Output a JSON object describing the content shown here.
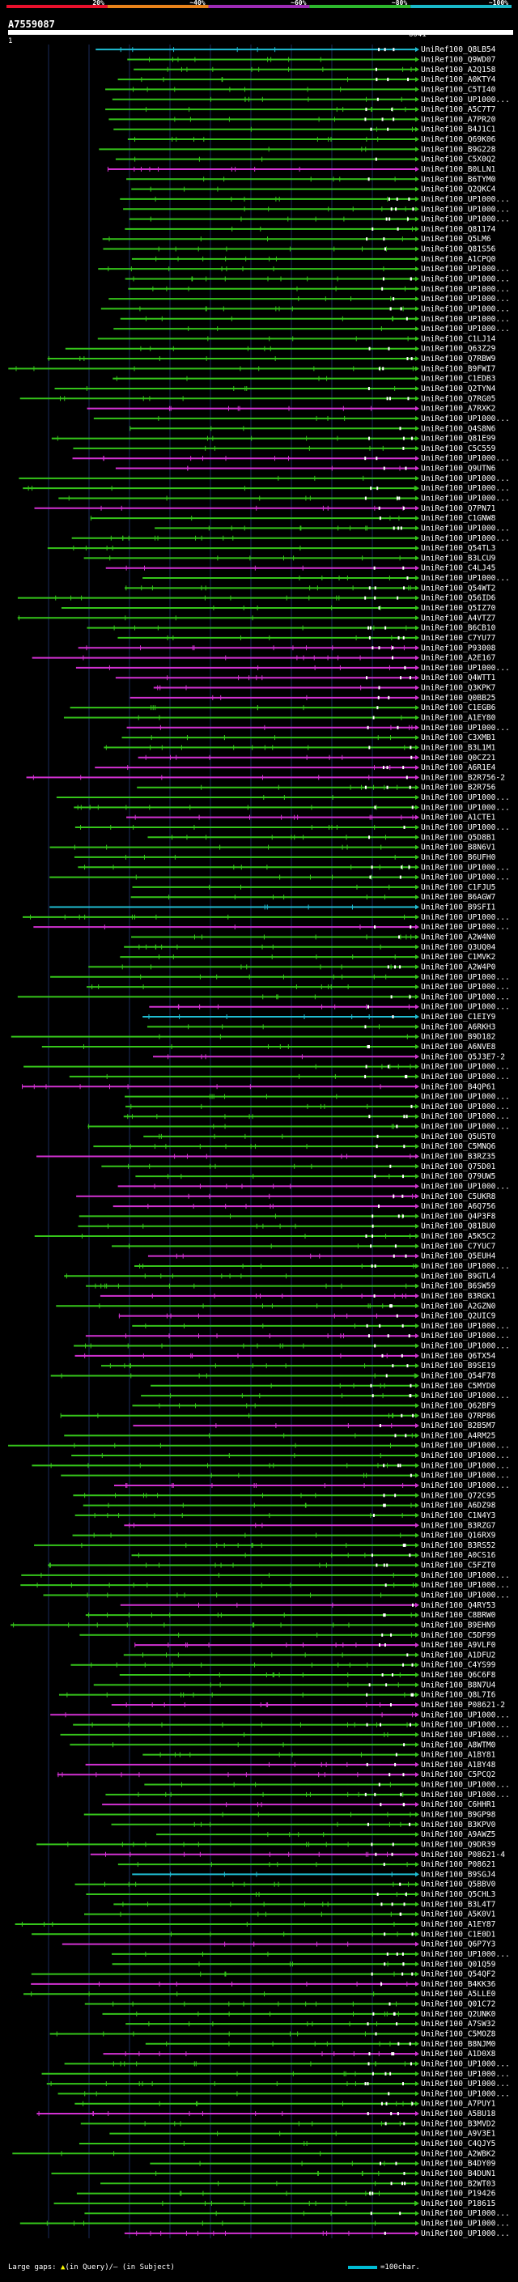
{
  "header": {
    "scale_labels": [
      "20%",
      "~40%",
      "~60%",
      "~80%",
      "~100%"
    ],
    "scale_colors": [
      "#e8102c",
      "#e8821a",
      "#9d2bb5",
      "#2db82d",
      "#19b8c8"
    ],
    "query_id": "A7559087",
    "start_pos": "1",
    "end_pos": "6041"
  },
  "colors": {
    "background": "#000000",
    "grid": "#1a2a5a",
    "green": "#35c51a",
    "magenta": "#d231d2",
    "cyan": "#1fbcd1",
    "query_bar": "#ffffff",
    "text": "#ffffff"
  },
  "chart_data": {
    "type": "alignment-overview",
    "title": "",
    "query_length": 6041,
    "hits": [
      {
        "id": "UniRef100_Q8LB54",
        "color": "cyan"
      },
      {
        "id": "UniRef100_Q9WD07",
        "color": "green"
      },
      {
        "id": "UniRef100_A2Q158",
        "color": "green"
      },
      {
        "id": "UniRef100_A0KTY4",
        "color": "green"
      },
      {
        "id": "UniRef100_C5TI40",
        "color": "green"
      },
      {
        "id": "UniRef100_UP1000...",
        "color": "green"
      },
      {
        "id": "UniRef100_A5C7T7",
        "color": "green"
      },
      {
        "id": "UniRef100_A7PR20",
        "color": "green"
      },
      {
        "id": "UniRef100_B4J1C1",
        "color": "green"
      },
      {
        "id": "UniRef100_Q69K06",
        "color": "green"
      },
      {
        "id": "UniRef100_B9G228",
        "color": "green"
      },
      {
        "id": "UniRef100_C5X0Q2",
        "color": "green"
      },
      {
        "id": "UniRef100_B0LLN1",
        "color": "magenta"
      },
      {
        "id": "UniRef100_B6TYM0",
        "color": "green"
      },
      {
        "id": "UniRef100_Q2QKC4",
        "color": "green"
      },
      {
        "id": "UniRef100_UP1000...",
        "color": "green"
      },
      {
        "id": "UniRef100_UP1000...",
        "color": "green"
      },
      {
        "id": "UniRef100_UP1000...",
        "color": "green"
      },
      {
        "id": "UniRef100_Q81174",
        "color": "green"
      },
      {
        "id": "UniRef100_Q5LM6",
        "color": "green"
      },
      {
        "id": "UniRef100_Q81S56",
        "color": "green"
      },
      {
        "id": "UniRef100_A1CPQ0",
        "color": "green"
      },
      {
        "id": "UniRef100_UP1000...",
        "color": "green"
      },
      {
        "id": "UniRef100_UP1000...",
        "color": "green"
      },
      {
        "id": "UniRef100_UP1000...",
        "color": "green"
      },
      {
        "id": "UniRef100_UP1000...",
        "color": "green"
      },
      {
        "id": "UniRef100_UP1000...",
        "color": "green"
      },
      {
        "id": "UniRef100_UP1000...",
        "color": "green"
      },
      {
        "id": "UniRef100_UP1000...",
        "color": "green"
      },
      {
        "id": "UniRef100_C1LJ14",
        "color": "green"
      },
      {
        "id": "UniRef100_Q63Z29",
        "color": "green"
      },
      {
        "id": "UniRef100_Q7RBW9",
        "color": "green"
      },
      {
        "id": "UniRef100_B9FWI7",
        "color": "green"
      },
      {
        "id": "UniRef100_C1EDB3",
        "color": "green"
      },
      {
        "id": "UniRef100_Q2TYN4",
        "color": "green"
      },
      {
        "id": "UniRef100_Q7RG05",
        "color": "green"
      },
      {
        "id": "UniRef100_A7RXK2",
        "color": "magenta"
      },
      {
        "id": "UniRef100_UP1000...",
        "color": "green"
      },
      {
        "id": "UniRef100_Q4S8N6",
        "color": "green"
      },
      {
        "id": "UniRef100_Q81E99",
        "color": "green"
      },
      {
        "id": "UniRef100_C5C559",
        "color": "green"
      },
      {
        "id": "UniRef100_UP1000...",
        "color": "magenta"
      },
      {
        "id": "UniRef100_Q9UTN6",
        "color": "magenta"
      },
      {
        "id": "UniRef100_UP1000...",
        "color": "green"
      },
      {
        "id": "UniRef100_UP1000...",
        "color": "green"
      },
      {
        "id": "UniRef100_UP1000...",
        "color": "green"
      },
      {
        "id": "UniRef100_Q7PN71",
        "color": "magenta"
      },
      {
        "id": "UniRef100_C1GNW8",
        "color": "green"
      },
      {
        "id": "UniRef100_UP1000...",
        "color": "green"
      },
      {
        "id": "UniRef100_UP1000...",
        "color": "green"
      },
      {
        "id": "UniRef100_Q54TL3",
        "color": "green"
      },
      {
        "id": "UniRef100_B3LCU9",
        "color": "green"
      },
      {
        "id": "UniRef100_C4LJ45",
        "color": "magenta"
      },
      {
        "id": "UniRef100_UP1000...",
        "color": "green"
      },
      {
        "id": "UniRef100_Q54WT2",
        "color": "green"
      },
      {
        "id": "UniRef100_Q56ID6",
        "color": "green"
      },
      {
        "id": "UniRef100_Q5IZ70",
        "color": "green"
      },
      {
        "id": "UniRef100_A4VTZ7",
        "color": "green"
      },
      {
        "id": "UniRef100_B6CB10",
        "color": "green"
      },
      {
        "id": "UniRef100_C7YU77",
        "color": "green"
      },
      {
        "id": "UniRef100_P93008",
        "color": "magenta"
      },
      {
        "id": "UniRef100_A2E167",
        "color": "magenta"
      },
      {
        "id": "UniRef100_UP1000...",
        "color": "magenta"
      },
      {
        "id": "UniRef100_Q4WTT1",
        "color": "magenta"
      },
      {
        "id": "UniRef100_Q3KPK7",
        "color": "magenta"
      },
      {
        "id": "UniRef100_Q0BB25",
        "color": "magenta"
      },
      {
        "id": "UniRef100_C1EGB6",
        "color": "green"
      },
      {
        "id": "UniRef100_A1EY80",
        "color": "green"
      },
      {
        "id": "UniRef100_UP1000...",
        "color": "magenta"
      },
      {
        "id": "UniRef100_C3XMB1",
        "color": "green"
      },
      {
        "id": "UniRef100_B3L1M1",
        "color": "green"
      },
      {
        "id": "UniRef100_Q0CZ21",
        "color": "magenta"
      },
      {
        "id": "UniRef100_A6R1E4",
        "color": "magenta"
      },
      {
        "id": "UniRef100_B2R756-2",
        "color": "magenta"
      },
      {
        "id": "UniRef100_B2R756",
        "color": "green"
      },
      {
        "id": "UniRef100_UP1000...",
        "color": "green"
      },
      {
        "id": "UniRef100_UP1000...",
        "color": "green"
      },
      {
        "id": "UniRef100_A1CTE1",
        "color": "magenta"
      },
      {
        "id": "UniRef100_UP1000...",
        "color": "green"
      },
      {
        "id": "UniRef100_Q5D8B1",
        "color": "green"
      },
      {
        "id": "UniRef100_B8N6V1",
        "color": "green"
      },
      {
        "id": "UniRef100_B6UFH0",
        "color": "green"
      },
      {
        "id": "UniRef100_UP1000...",
        "color": "green"
      },
      {
        "id": "UniRef100_UP1000...",
        "color": "green"
      },
      {
        "id": "UniRef100_C1FJU5",
        "color": "green"
      },
      {
        "id": "UniRef100_B6AGW7",
        "color": "green"
      },
      {
        "id": "UniRef100_B9SFI1",
        "color": "cyan"
      },
      {
        "id": "UniRef100_UP1000...",
        "color": "green"
      },
      {
        "id": "UniRef100_UP1000...",
        "color": "magenta"
      },
      {
        "id": "UniRef100_A2W4N0",
        "color": "green"
      },
      {
        "id": "UniRef100_Q3UQ04",
        "color": "green"
      },
      {
        "id": "UniRef100_C1MVK2",
        "color": "green"
      },
      {
        "id": "UniRef100_A2W4P0",
        "color": "green"
      },
      {
        "id": "UniRef100_UP1000...",
        "color": "green"
      },
      {
        "id": "UniRef100_UP1000...",
        "color": "green"
      },
      {
        "id": "UniRef100_UP1000...",
        "color": "green"
      },
      {
        "id": "UniRef100_UP1000...",
        "color": "magenta"
      },
      {
        "id": "UniRef100_C1EIY9",
        "color": "cyan"
      },
      {
        "id": "UniRef100_A6RKH3",
        "color": "green"
      },
      {
        "id": "UniRef100_B9D182",
        "color": "green"
      },
      {
        "id": "UniRef100_A6NVE8",
        "color": "green"
      },
      {
        "id": "UniRef100_Q5J3E7-2",
        "color": "magenta"
      },
      {
        "id": "UniRef100_UP1000...",
        "color": "green"
      },
      {
        "id": "UniRef100_UP1000...",
        "color": "green"
      },
      {
        "id": "UniRef100_B4QP61",
        "color": "magenta"
      },
      {
        "id": "UniRef100_UP1000...",
        "color": "green"
      },
      {
        "id": "UniRef100_UP1000...",
        "color": "green"
      },
      {
        "id": "UniRef100_UP1000...",
        "color": "green"
      },
      {
        "id": "UniRef100_UP1000...",
        "color": "green"
      },
      {
        "id": "UniRef100_Q5U5T0",
        "color": "green"
      },
      {
        "id": "UniRef100_C5MNQ6",
        "color": "green"
      },
      {
        "id": "UniRef100_B3RZ35",
        "color": "magenta"
      },
      {
        "id": "UniRef100_Q75D01",
        "color": "green"
      },
      {
        "id": "UniRef100_Q79UW5",
        "color": "green"
      },
      {
        "id": "UniRef100_UP1000...",
        "color": "magenta"
      },
      {
        "id": "UniRef100_C5UKR8",
        "color": "magenta"
      },
      {
        "id": "UniRef100_A6Q756",
        "color": "magenta"
      },
      {
        "id": "UniRef100_Q4P3F8",
        "color": "green"
      },
      {
        "id": "UniRef100_Q81BU0",
        "color": "green"
      },
      {
        "id": "UniRef100_A5K5C2",
        "color": "green"
      },
      {
        "id": "UniRef100_C7YUC7",
        "color": "green"
      },
      {
        "id": "UniRef100_Q5EUH4",
        "color": "magenta"
      },
      {
        "id": "UniRef100_UP1000...",
        "color": "green"
      },
      {
        "id": "UniRef100_B9GTL4",
        "color": "green"
      },
      {
        "id": "UniRef100_B6SW59",
        "color": "green"
      },
      {
        "id": "UniRef100_B3RGK1",
        "color": "magenta"
      },
      {
        "id": "UniRef100_A2GZN0",
        "color": "green"
      },
      {
        "id": "UniRef100_Q2UIC9",
        "color": "magenta"
      },
      {
        "id": "UniRef100_UP1000...",
        "color": "green"
      },
      {
        "id": "UniRef100_UP1000...",
        "color": "magenta"
      },
      {
        "id": "UniRef100_UP1000...",
        "color": "green"
      },
      {
        "id": "UniRef100_Q6TX54",
        "color": "magenta"
      },
      {
        "id": "UniRef100_B9SE19",
        "color": "green"
      },
      {
        "id": "UniRef100_Q54F78",
        "color": "green"
      },
      {
        "id": "UniRef100_C5MYD0",
        "color": "green"
      },
      {
        "id": "UniRef100_UP1000...",
        "color": "green"
      },
      {
        "id": "UniRef100_Q62BF9",
        "color": "green"
      },
      {
        "id": "UniRef100_Q7RP86",
        "color": "green"
      },
      {
        "id": "UniRef100_B2B5M7",
        "color": "magenta"
      },
      {
        "id": "UniRef100_A4RM25",
        "color": "green"
      },
      {
        "id": "UniRef100_UP1000...",
        "color": "green"
      },
      {
        "id": "UniRef100_UP1000...",
        "color": "green"
      },
      {
        "id": "UniRef100_UP1000...",
        "color": "green"
      },
      {
        "id": "UniRef100_UP1000...",
        "color": "green"
      },
      {
        "id": "UniRef100_UP1000...",
        "color": "magenta"
      },
      {
        "id": "UniRef100_Q72C95",
        "color": "green"
      },
      {
        "id": "UniRef100_A6DZ98",
        "color": "green"
      },
      {
        "id": "UniRef100_C1N4Y3",
        "color": "green"
      },
      {
        "id": "UniRef100_B3RZG7",
        "color": "magenta"
      },
      {
        "id": "UniRef100_Q16RX9",
        "color": "green"
      },
      {
        "id": "UniRef100_B3RS52",
        "color": "green"
      },
      {
        "id": "UniRef100_A0CS16",
        "color": "green"
      },
      {
        "id": "UniRef100_C5FZT0",
        "color": "green"
      },
      {
        "id": "UniRef100_UP1000...",
        "color": "green"
      },
      {
        "id": "UniRef100_UP1000...",
        "color": "green"
      },
      {
        "id": "UniRef100_UP1000...",
        "color": "green"
      },
      {
        "id": "UniRef100_Q4RY53",
        "color": "magenta"
      },
      {
        "id": "UniRef100_C8BRW0",
        "color": "green"
      },
      {
        "id": "UniRef100_B9EHN9",
        "color": "green"
      },
      {
        "id": "UniRef100_C5DF99",
        "color": "green"
      },
      {
        "id": "UniRef100_A9VLF0",
        "color": "magenta"
      },
      {
        "id": "UniRef100_A1DFU2",
        "color": "green"
      },
      {
        "id": "UniRef100_C4YS99",
        "color": "green"
      },
      {
        "id": "UniRef100_Q6C6F8",
        "color": "green"
      },
      {
        "id": "UniRef100_B8N7U4",
        "color": "green"
      },
      {
        "id": "UniRef100_Q8L7I6",
        "color": "green"
      },
      {
        "id": "UniRef100_P08621-2",
        "color": "magenta"
      },
      {
        "id": "UniRef100_UP1000...",
        "color": "magenta"
      },
      {
        "id": "UniRef100_UP1000...",
        "color": "green"
      },
      {
        "id": "UniRef100_UP1000...",
        "color": "green"
      },
      {
        "id": "UniRef100_A8WTM0",
        "color": "green"
      },
      {
        "id": "UniRef100_A1BY81",
        "color": "green"
      },
      {
        "id": "UniRef100_A1BY48",
        "color": "magenta"
      },
      {
        "id": "UniRef100_C5PCQ2",
        "color": "magenta"
      },
      {
        "id": "UniRef100_UP1000...",
        "color": "green"
      },
      {
        "id": "UniRef100_UP1000...",
        "color": "green"
      },
      {
        "id": "UniRef100_C6HHR1",
        "color": "magenta"
      },
      {
        "id": "UniRef100_B9GP98",
        "color": "green"
      },
      {
        "id": "UniRef100_B3KPV0",
        "color": "green"
      },
      {
        "id": "UniRef100_A9AWZ5",
        "color": "green"
      },
      {
        "id": "UniRef100_Q9DR39",
        "color": "green"
      },
      {
        "id": "UniRef100_P08621-4",
        "color": "magenta"
      },
      {
        "id": "UniRef100_P08621",
        "color": "green"
      },
      {
        "id": "UniRef100_B9SGJ4",
        "color": "cyan"
      },
      {
        "id": "UniRef100_Q5BBV0",
        "color": "green"
      },
      {
        "id": "UniRef100_Q5CHL3",
        "color": "green"
      },
      {
        "id": "UniRef100_B3L4T7",
        "color": "green"
      },
      {
        "id": "UniRef100_A5K0V1",
        "color": "green"
      },
      {
        "id": "UniRef100_A1EY87",
        "color": "green"
      },
      {
        "id": "UniRef100_C1E0D1",
        "color": "green"
      },
      {
        "id": "UniRef100_Q6P7Y3",
        "color": "magenta"
      },
      {
        "id": "UniRef100_UP1000...",
        "color": "green"
      },
      {
        "id": "UniRef100_Q01Q59",
        "color": "green"
      },
      {
        "id": "UniRef100_Q54QF2",
        "color": "green"
      },
      {
        "id": "UniRef100_B4KK36",
        "color": "magenta"
      },
      {
        "id": "UniRef100_A5LLE0",
        "color": "green"
      },
      {
        "id": "UniRef100_Q01C72",
        "color": "green"
      },
      {
        "id": "UniRef100_Q2UNK0",
        "color": "green"
      },
      {
        "id": "UniRef100_A7SW32",
        "color": "green"
      },
      {
        "id": "UniRef100_C5MOZ8",
        "color": "green"
      },
      {
        "id": "UniRef100_B8NJM0",
        "color": "green"
      },
      {
        "id": "UniRef100_A1D0X8",
        "color": "magenta"
      },
      {
        "id": "UniRef100_UP1000...",
        "color": "green"
      },
      {
        "id": "UniRef100_UP1000...",
        "color": "green"
      },
      {
        "id": "UniRef100_UP1000...",
        "color": "green"
      },
      {
        "id": "UniRef100_UP1000...",
        "color": "green"
      },
      {
        "id": "UniRef100_A7PUY1",
        "color": "green"
      },
      {
        "id": "UniRef100_A5BU18",
        "color": "magenta"
      },
      {
        "id": "UniRef100_B3MVD2",
        "color": "green"
      },
      {
        "id": "UniRef100_A9V3E1",
        "color": "green"
      },
      {
        "id": "UniRef100_C4QJY5",
        "color": "green"
      },
      {
        "id": "UniRef100_A2WBK2",
        "color": "green"
      },
      {
        "id": "UniRef100_B4DY09",
        "color": "green"
      },
      {
        "id": "UniRef100_B4DUN1",
        "color": "green"
      },
      {
        "id": "UniRef100_B2WT03",
        "color": "green"
      },
      {
        "id": "UniRef100_P19426",
        "color": "green"
      },
      {
        "id": "UniRef100_P18615",
        "color": "green"
      },
      {
        "id": "UniRef100_UP1000...",
        "color": "green"
      },
      {
        "id": "UniRef100_UP1000...",
        "color": "green"
      },
      {
        "id": "UniRef100_UP1000...",
        "color": "magenta"
      }
    ]
  },
  "footer": {
    "legend_prefix": "Large gaps: ",
    "legend_arrow": "▲",
    "legend_text": "(in Query)/– (in Subject)",
    "scale_text": "=100char."
  }
}
